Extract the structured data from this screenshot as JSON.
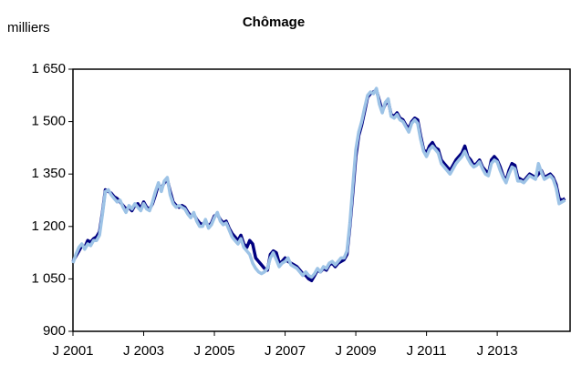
{
  "chart_data": {
    "type": "line",
    "title": "Chômage",
    "ylabel": "milliers",
    "categories": [
      "J 2001",
      null,
      null,
      null,
      null,
      null,
      null,
      null,
      null,
      null,
      null,
      null,
      null,
      null,
      null,
      null,
      null,
      null,
      null,
      null,
      null,
      null,
      null,
      null,
      "J 2003",
      null,
      null,
      null,
      null,
      null,
      null,
      null,
      null,
      null,
      null,
      null,
      null,
      null,
      null,
      null,
      null,
      null,
      null,
      null,
      null,
      null,
      null,
      null,
      "J 2005",
      null,
      null,
      null,
      null,
      null,
      null,
      null,
      null,
      null,
      null,
      null,
      null,
      null,
      null,
      null,
      null,
      null,
      null,
      null,
      null,
      null,
      null,
      null,
      "J 2007",
      null,
      null,
      null,
      null,
      null,
      null,
      null,
      null,
      null,
      null,
      null,
      null,
      null,
      null,
      null,
      null,
      null,
      null,
      null,
      null,
      null,
      null,
      null,
      "J 2009",
      null,
      null,
      null,
      null,
      null,
      null,
      null,
      null,
      null,
      null,
      null,
      null,
      null,
      null,
      null,
      null,
      null,
      null,
      null,
      null,
      null,
      null,
      null,
      "J 2011",
      null,
      null,
      null,
      null,
      null,
      null,
      null,
      null,
      null,
      null,
      null,
      null,
      null,
      null,
      null,
      null,
      null,
      null,
      null,
      null,
      null,
      null,
      null,
      "J 2013",
      null,
      null,
      null,
      null,
      null,
      null,
      null,
      null,
      null,
      null,
      null,
      null,
      null,
      null,
      null,
      null,
      null,
      null,
      null,
      null,
      null,
      null,
      null
    ],
    "series": [
      {
        "color": "#000080",
        "values": [
          1100,
          1115,
          1130,
          1145,
          1140,
          1160,
          1155,
          1165,
          1170,
          1185,
          1240,
          1305,
          1300,
          1295,
          1285,
          1280,
          1270,
          1260,
          1250,
          1255,
          1245,
          1260,
          1265,
          1250,
          1270,
          1255,
          1250,
          1265,
          1290,
          1320,
          1310,
          1325,
          1335,
          1300,
          1270,
          1260,
          1255,
          1260,
          1255,
          1240,
          1230,
          1235,
          1220,
          1210,
          1205,
          1215,
          1200,
          1210,
          1230,
          1235,
          1220,
          1210,
          1215,
          1195,
          1180,
          1170,
          1160,
          1175,
          1150,
          1140,
          1160,
          1150,
          1110,
          1100,
          1090,
          1080,
          1075,
          1120,
          1130,
          1125,
          1095,
          1100,
          1110,
          1100,
          1095,
          1090,
          1085,
          1075,
          1065,
          1060,
          1050,
          1045,
          1060,
          1075,
          1070,
          1080,
          1075,
          1090,
          1095,
          1085,
          1095,
          1100,
          1105,
          1120,
          1200,
          1300,
          1400,
          1460,
          1490,
          1530,
          1570,
          1580,
          1585,
          1590,
          1560,
          1530,
          1550,
          1560,
          1520,
          1515,
          1525,
          1510,
          1505,
          1490,
          1480,
          1500,
          1510,
          1505,
          1460,
          1420,
          1410,
          1430,
          1440,
          1425,
          1420,
          1390,
          1380,
          1370,
          1360,
          1375,
          1390,
          1400,
          1410,
          1430,
          1400,
          1390,
          1375,
          1380,
          1390,
          1370,
          1360,
          1350,
          1390,
          1400,
          1390,
          1370,
          1345,
          1330,
          1360,
          1380,
          1375,
          1340,
          1335,
          1330,
          1340,
          1350,
          1345,
          1340,
          1350,
          1360,
          1340,
          1345,
          1350,
          1340,
          1320,
          1280,
          1275,
          1280
        ]
      },
      {
        "color": "#9dc3e6",
        "values": [
          1095,
          1120,
          1140,
          1150,
          1135,
          1150,
          1145,
          1160,
          1160,
          1175,
          1235,
          1300,
          1305,
          1290,
          1280,
          1270,
          1275,
          1255,
          1240,
          1260,
          1250,
          1265,
          1255,
          1245,
          1265,
          1250,
          1245,
          1270,
          1300,
          1325,
          1300,
          1330,
          1340,
          1290,
          1265,
          1255,
          1260,
          1255,
          1250,
          1235,
          1225,
          1240,
          1215,
          1200,
          1200,
          1220,
          1195,
          1205,
          1225,
          1240,
          1215,
          1205,
          1210,
          1190,
          1170,
          1160,
          1150,
          1165,
          1140,
          1130,
          1120,
          1095,
          1080,
          1070,
          1065,
          1070,
          1080,
          1110,
          1125,
          1105,
          1085,
          1095,
          1100,
          1110,
          1090,
          1085,
          1080,
          1070,
          1060,
          1070,
          1060,
          1055,
          1065,
          1080,
          1070,
          1085,
          1080,
          1095,
          1100,
          1090,
          1100,
          1110,
          1110,
          1130,
          1210,
          1320,
          1420,
          1470,
          1500,
          1540,
          1575,
          1585,
          1580,
          1595,
          1550,
          1525,
          1555,
          1565,
          1515,
          1510,
          1520,
          1505,
          1500,
          1485,
          1470,
          1495,
          1505,
          1495,
          1450,
          1415,
          1400,
          1420,
          1430,
          1420,
          1410,
          1380,
          1370,
          1360,
          1350,
          1365,
          1380,
          1390,
          1400,
          1415,
          1395,
          1380,
          1370,
          1375,
          1385,
          1365,
          1350,
          1345,
          1380,
          1390,
          1385,
          1360,
          1340,
          1325,
          1350,
          1370,
          1365,
          1330,
          1330,
          1325,
          1335,
          1345,
          1340,
          1335,
          1380,
          1355,
          1335,
          1340,
          1345,
          1335,
          1310,
          1265,
          1270,
          1275
        ]
      }
    ],
    "ylim": [
      900,
      1650
    ],
    "yticks": [
      {
        "value": 900,
        "label": "900"
      },
      {
        "value": 1050,
        "label": "1 050"
      },
      {
        "value": 1200,
        "label": "1 200"
      },
      {
        "value": 1350,
        "label": "1 350"
      },
      {
        "value": 1500,
        "label": "1 500"
      },
      {
        "value": 1650,
        "label": "1 650"
      }
    ]
  }
}
